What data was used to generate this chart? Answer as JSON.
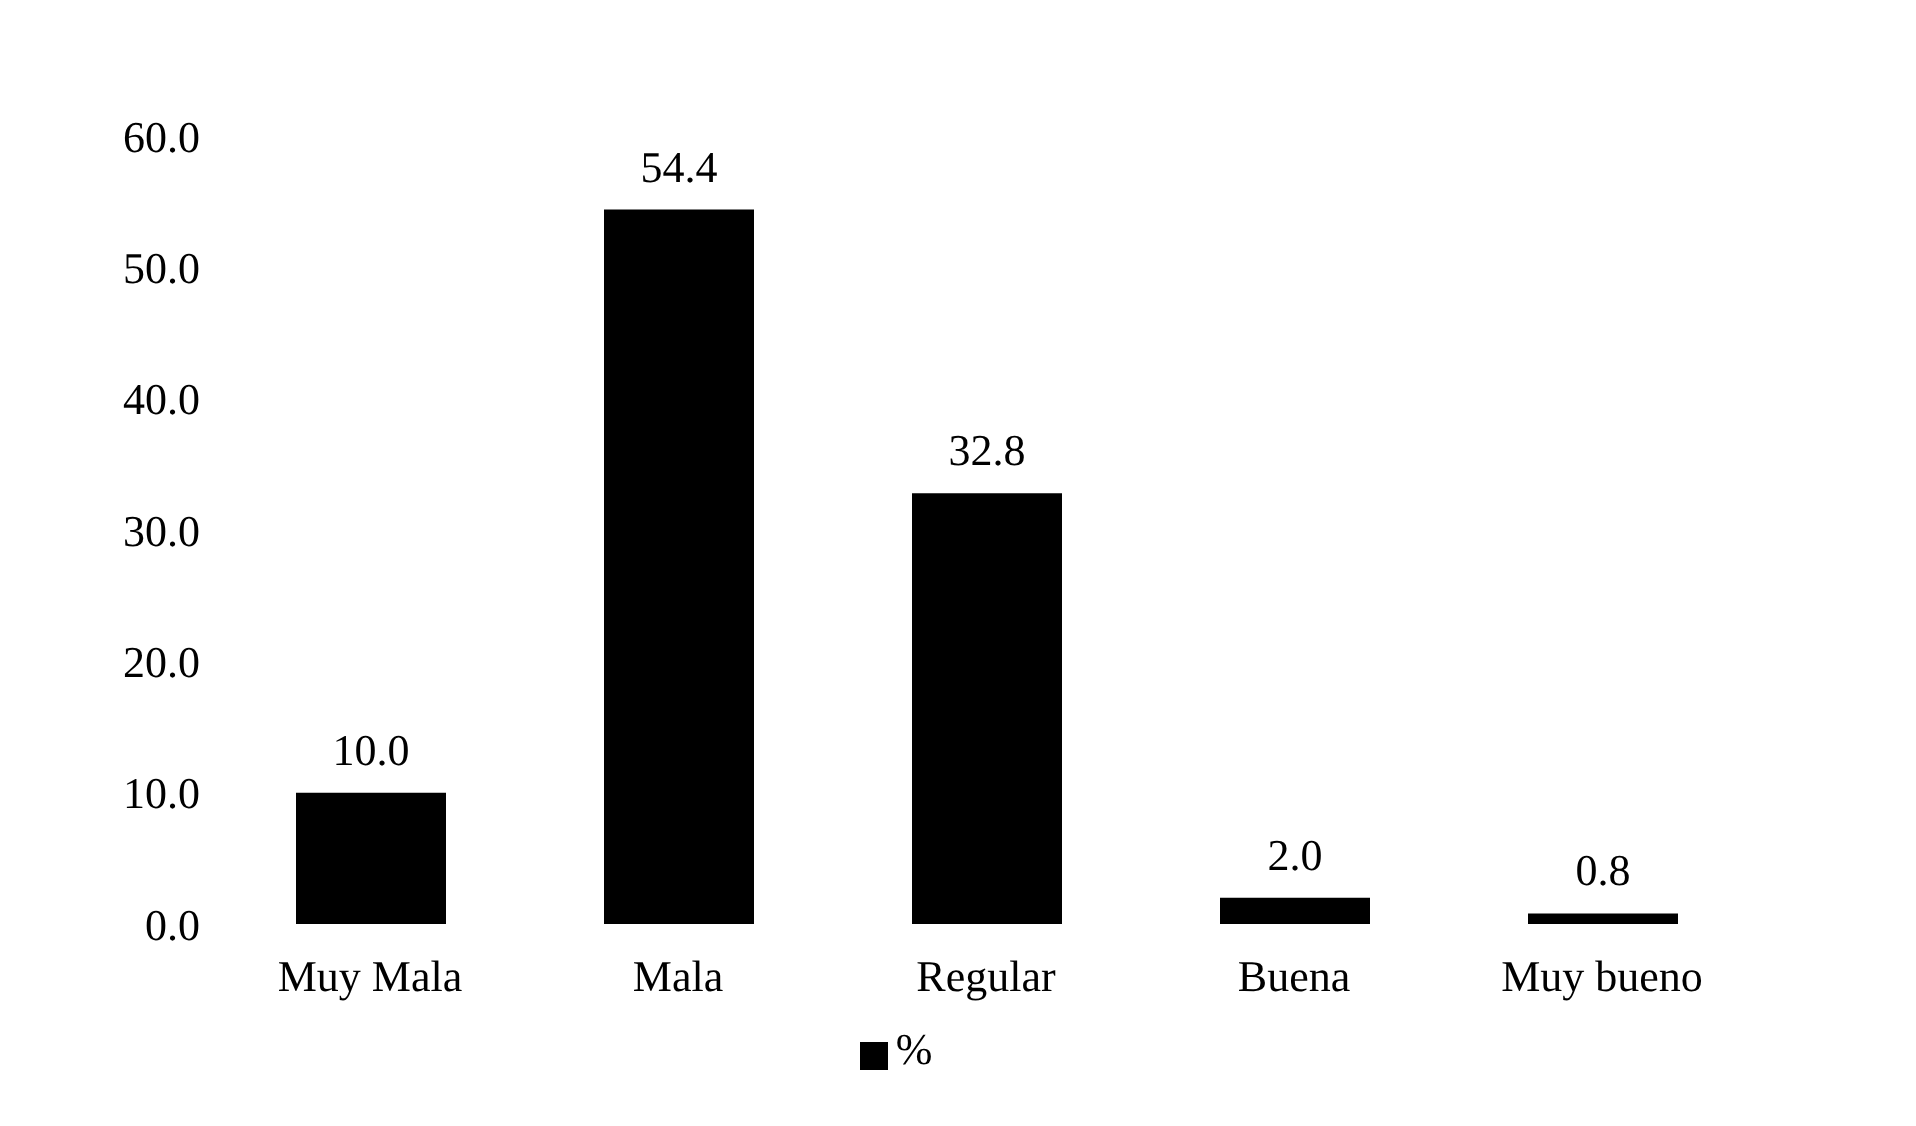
{
  "chart_data": {
    "type": "bar",
    "categories": [
      "Muy Mala",
      "Mala",
      "Regular",
      "Buena",
      "Muy bueno"
    ],
    "series": [
      {
        "name": "%",
        "color": "#000000",
        "values": [
          10.0,
          54.4,
          32.8,
          2.0,
          0.8
        ],
        "value_labels": [
          "10.0",
          "54.4",
          "32.8",
          "2.0",
          "0.8"
        ]
      }
    ],
    "ylim": [
      0,
      60
    ],
    "yticks": [
      {
        "value": 0,
        "label": "0.0"
      },
      {
        "value": 10,
        "label": "10.0"
      },
      {
        "value": 20,
        "label": "20.0"
      },
      {
        "value": 30,
        "label": "30.0"
      },
      {
        "value": 40,
        "label": "40.0"
      },
      {
        "value": 50,
        "label": "50.0"
      },
      {
        "value": 60,
        "label": "60.0"
      }
    ],
    "grid": false,
    "legend": "bottom"
  }
}
